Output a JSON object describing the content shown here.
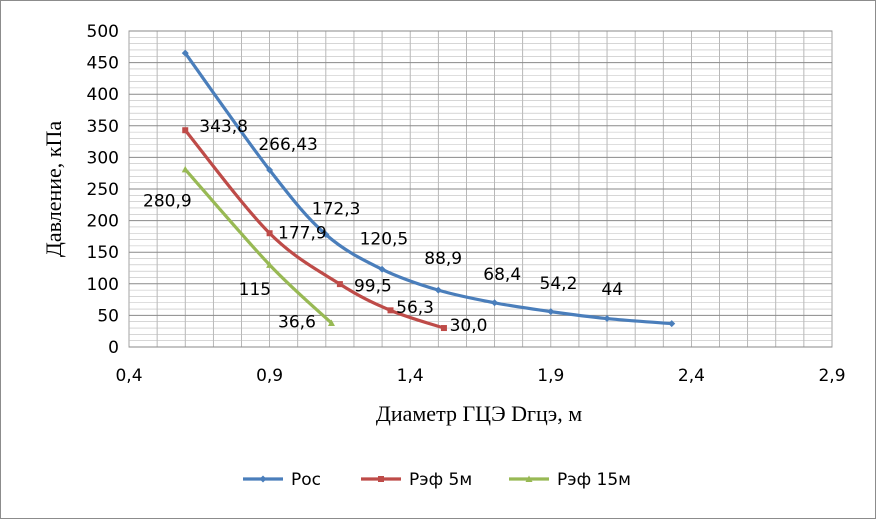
{
  "chart_data": {
    "type": "line",
    "title": "",
    "xlabel": "Диаметр ГЦЭ Dгцэ, м",
    "ylabel": "Давление, кПа",
    "xlim": [
      0.4,
      2.9
    ],
    "ylim": [
      0,
      500
    ],
    "x_ticks": [
      "0,4",
      "0,9",
      "1,4",
      "1,9",
      "2,4",
      "2,9"
    ],
    "y_ticks": [
      "0",
      "50",
      "100",
      "150",
      "200",
      "250",
      "300",
      "350",
      "400",
      "450",
      "500"
    ],
    "grid": true,
    "legend_position": "bottom",
    "series": [
      {
        "name": "Рос",
        "color": "#4a7ebb",
        "marker": "diamond",
        "x": [
          0.6,
          0.9,
          1.1,
          1.3,
          1.5,
          1.7,
          1.9,
          2.1,
          2.33
        ],
        "y": [
          465,
          280,
          178,
          123,
          90,
          70,
          56,
          45,
          37
        ]
      },
      {
        "name": "Рэф 5м",
        "color": "#be4b48",
        "marker": "square",
        "x": [
          0.6,
          0.9,
          1.15,
          1.33,
          1.52
        ],
        "y": [
          343,
          180,
          99.5,
          58,
          30
        ]
      },
      {
        "name": "Рэф 15м",
        "color": "#98b954",
        "marker": "triangle",
        "x": [
          0.6,
          0.9,
          1.12
        ],
        "y": [
          281,
          130,
          38
        ]
      }
    ],
    "data_labels": [
      {
        "text": "343,8",
        "x": 0.65,
        "y": 340
      },
      {
        "text": "266,43",
        "x": 0.86,
        "y": 312
      },
      {
        "text": "280,9",
        "x": 0.45,
        "y": 222
      },
      {
        "text": "172,3",
        "x": 1.05,
        "y": 210
      },
      {
        "text": "177,9",
        "x": 0.93,
        "y": 172
      },
      {
        "text": "120,5",
        "x": 1.22,
        "y": 162
      },
      {
        "text": "88,9",
        "x": 1.45,
        "y": 131
      },
      {
        "text": "68,4",
        "x": 1.66,
        "y": 106
      },
      {
        "text": "54,2",
        "x": 1.86,
        "y": 92
      },
      {
        "text": "44",
        "x": 2.08,
        "y": 82
      },
      {
        "text": "115",
        "x": 0.79,
        "y": 82
      },
      {
        "text": "99,5",
        "x": 1.2,
        "y": 88
      },
      {
        "text": "56,3",
        "x": 1.35,
        "y": 54
      },
      {
        "text": "36,6",
        "x": 0.93,
        "y": 31
      },
      {
        "text": "30,0",
        "x": 1.54,
        "y": 25
      }
    ]
  }
}
